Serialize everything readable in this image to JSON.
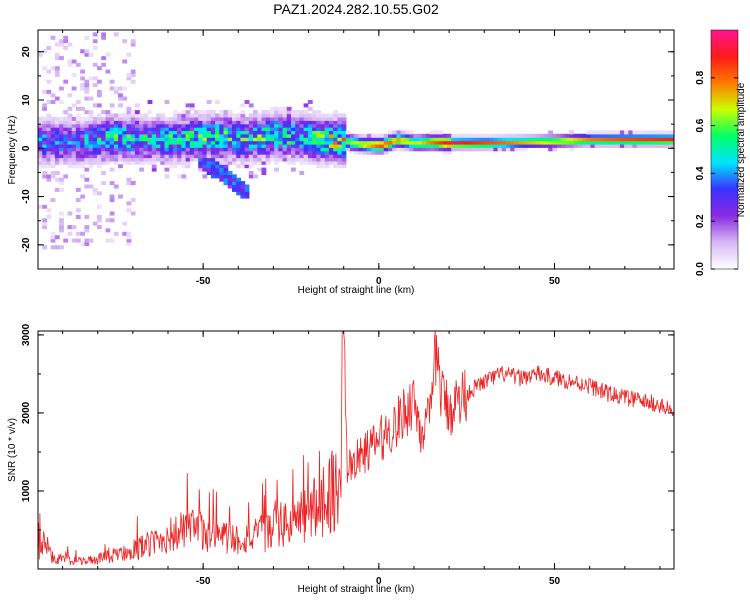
{
  "title": "PAZ1.2024.282.10.55.G02",
  "chart_data": [
    {
      "type": "heatmap",
      "xlabel": "Height of straight line (km)",
      "ylabel": "Frequency (Hz)",
      "xlim": [
        -97,
        84
      ],
      "ylim": [
        -25,
        24.5
      ],
      "xticks": [
        -50,
        0,
        50
      ],
      "yticks": [
        -20,
        -10,
        0,
        10,
        20
      ],
      "grid": false,
      "colorbar": {
        "label": "Normalized spectral amplitude",
        "range": [
          0,
          1
        ],
        "ticks": [
          0.0,
          0.2,
          0.4,
          0.6,
          0.8
        ],
        "tick_labels": [
          "0.0",
          "0.2",
          "0.4",
          "0.6",
          "0.8"
        ],
        "colors": [
          "#ffffff",
          "#d7b8f5",
          "#8a2be2",
          "#3b30ff",
          "#00e5ff",
          "#00ff66",
          "#ccff00",
          "#ff7a00",
          "#ff1a1a",
          "#ff1493"
        ]
      },
      "ridge": {
        "x": [
          -85,
          -75,
          -65,
          -55,
          -45,
          -38,
          -30,
          -22,
          -15,
          -10,
          -5,
          0,
          5,
          10,
          15,
          20,
          30,
          40,
          50,
          60,
          70,
          84
        ],
        "y": [
          1.0,
          2.0,
          1.5,
          1.8,
          2.0,
          1.5,
          2.5,
          2.0,
          1.5,
          1.2,
          0.5,
          0.3,
          1.5,
          0.8,
          1.0,
          0.8,
          0.8,
          1.0,
          1.2,
          1.5,
          1.5,
          1.5
        ],
        "amplitude": [
          0.35,
          0.45,
          0.4,
          0.45,
          0.5,
          0.45,
          0.5,
          0.45,
          0.55,
          0.6,
          0.7,
          0.85,
          0.75,
          0.65,
          0.8,
          0.95,
          0.85,
          0.75,
          0.7,
          0.8,
          0.85,
          0.9
        ]
      }
    },
    {
      "type": "line",
      "xlabel": "Height of straight line (km)",
      "ylabel": "SNR (10 * v/v)",
      "xlim": [
        -97,
        84
      ],
      "ylim": [
        0,
        3050
      ],
      "xticks": [
        -50,
        0,
        50
      ],
      "yticks": [
        1000,
        2000,
        3000
      ],
      "grid": false,
      "color": "#ee2222",
      "series": [
        {
          "x": [
            -97,
            -95,
            -93,
            -90,
            -85,
            -80,
            -75,
            -70,
            -65,
            -60,
            -55,
            -50,
            -45,
            -40,
            -35,
            -30,
            -25,
            -20,
            -15,
            -11,
            -10,
            -9,
            -5,
            0,
            5,
            8,
            10,
            12,
            15,
            16,
            18,
            20,
            25,
            30,
            35,
            40,
            45,
            50,
            55,
            60,
            65,
            70,
            75,
            80,
            84
          ],
          "y": [
            250,
            350,
            150,
            120,
            100,
            120,
            180,
            250,
            320,
            420,
            500,
            480,
            420,
            380,
            420,
            520,
            600,
            700,
            950,
            1100,
            3000,
            1300,
            1450,
            1650,
            1850,
            2050,
            2200,
            1750,
            1950,
            2900,
            2200,
            2050,
            2250,
            2400,
            2500,
            2450,
            2500,
            2450,
            2400,
            2350,
            2250,
            2200,
            2150,
            2100,
            2000
          ]
        }
      ]
    }
  ]
}
